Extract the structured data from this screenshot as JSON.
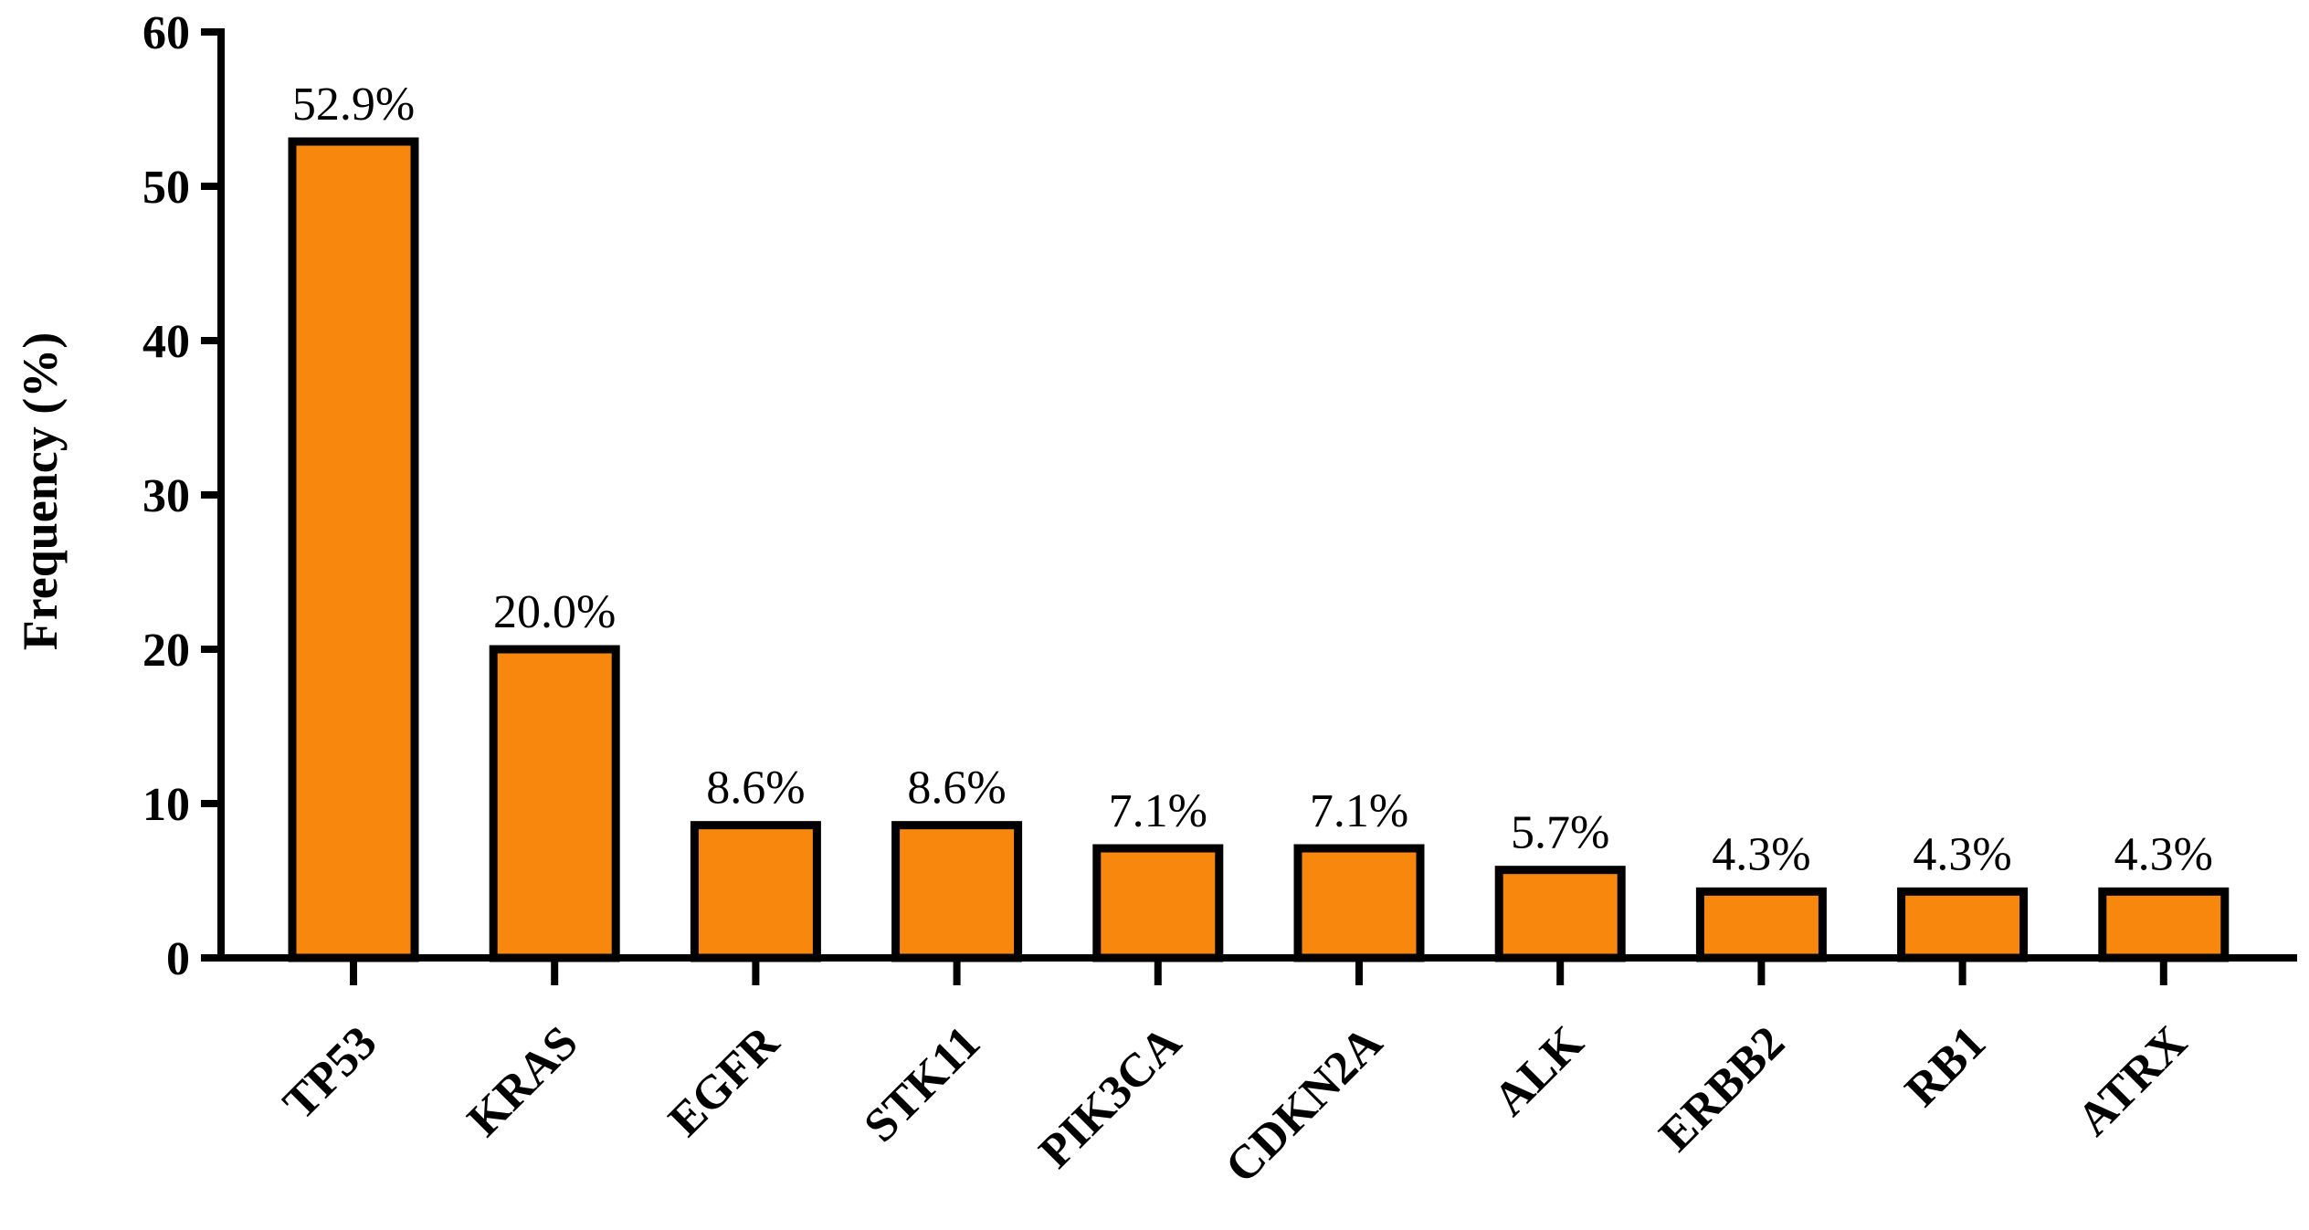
{
  "chart_data": {
    "type": "bar",
    "title": "",
    "xlabel": "",
    "ylabel": "Frequency (%)",
    "categories": [
      "TP53",
      "KRAS",
      "EGFR",
      "STK11",
      "PIK3CA",
      "CDKN2A",
      "ALK",
      "ERBB2",
      "RB1",
      "ATRX"
    ],
    "values": [
      52.9,
      20.0,
      8.6,
      8.6,
      7.1,
      7.1,
      5.7,
      4.3,
      4.3,
      4.3
    ],
    "data_labels": [
      "52.9%",
      "20.0%",
      "8.6%",
      "8.6%",
      "7.1%",
      "7.1%",
      "5.7%",
      "4.3%",
      "4.3%",
      "4.3%"
    ],
    "ylim": [
      0,
      60
    ],
    "yticks": [
      0,
      10,
      20,
      30,
      40,
      50,
      60
    ],
    "grid": false,
    "legend": "none",
    "colors": {
      "bar_fill": "#F8870E",
      "bar_stroke": "#000000",
      "axis": "#000000",
      "text": "#000000"
    }
  }
}
